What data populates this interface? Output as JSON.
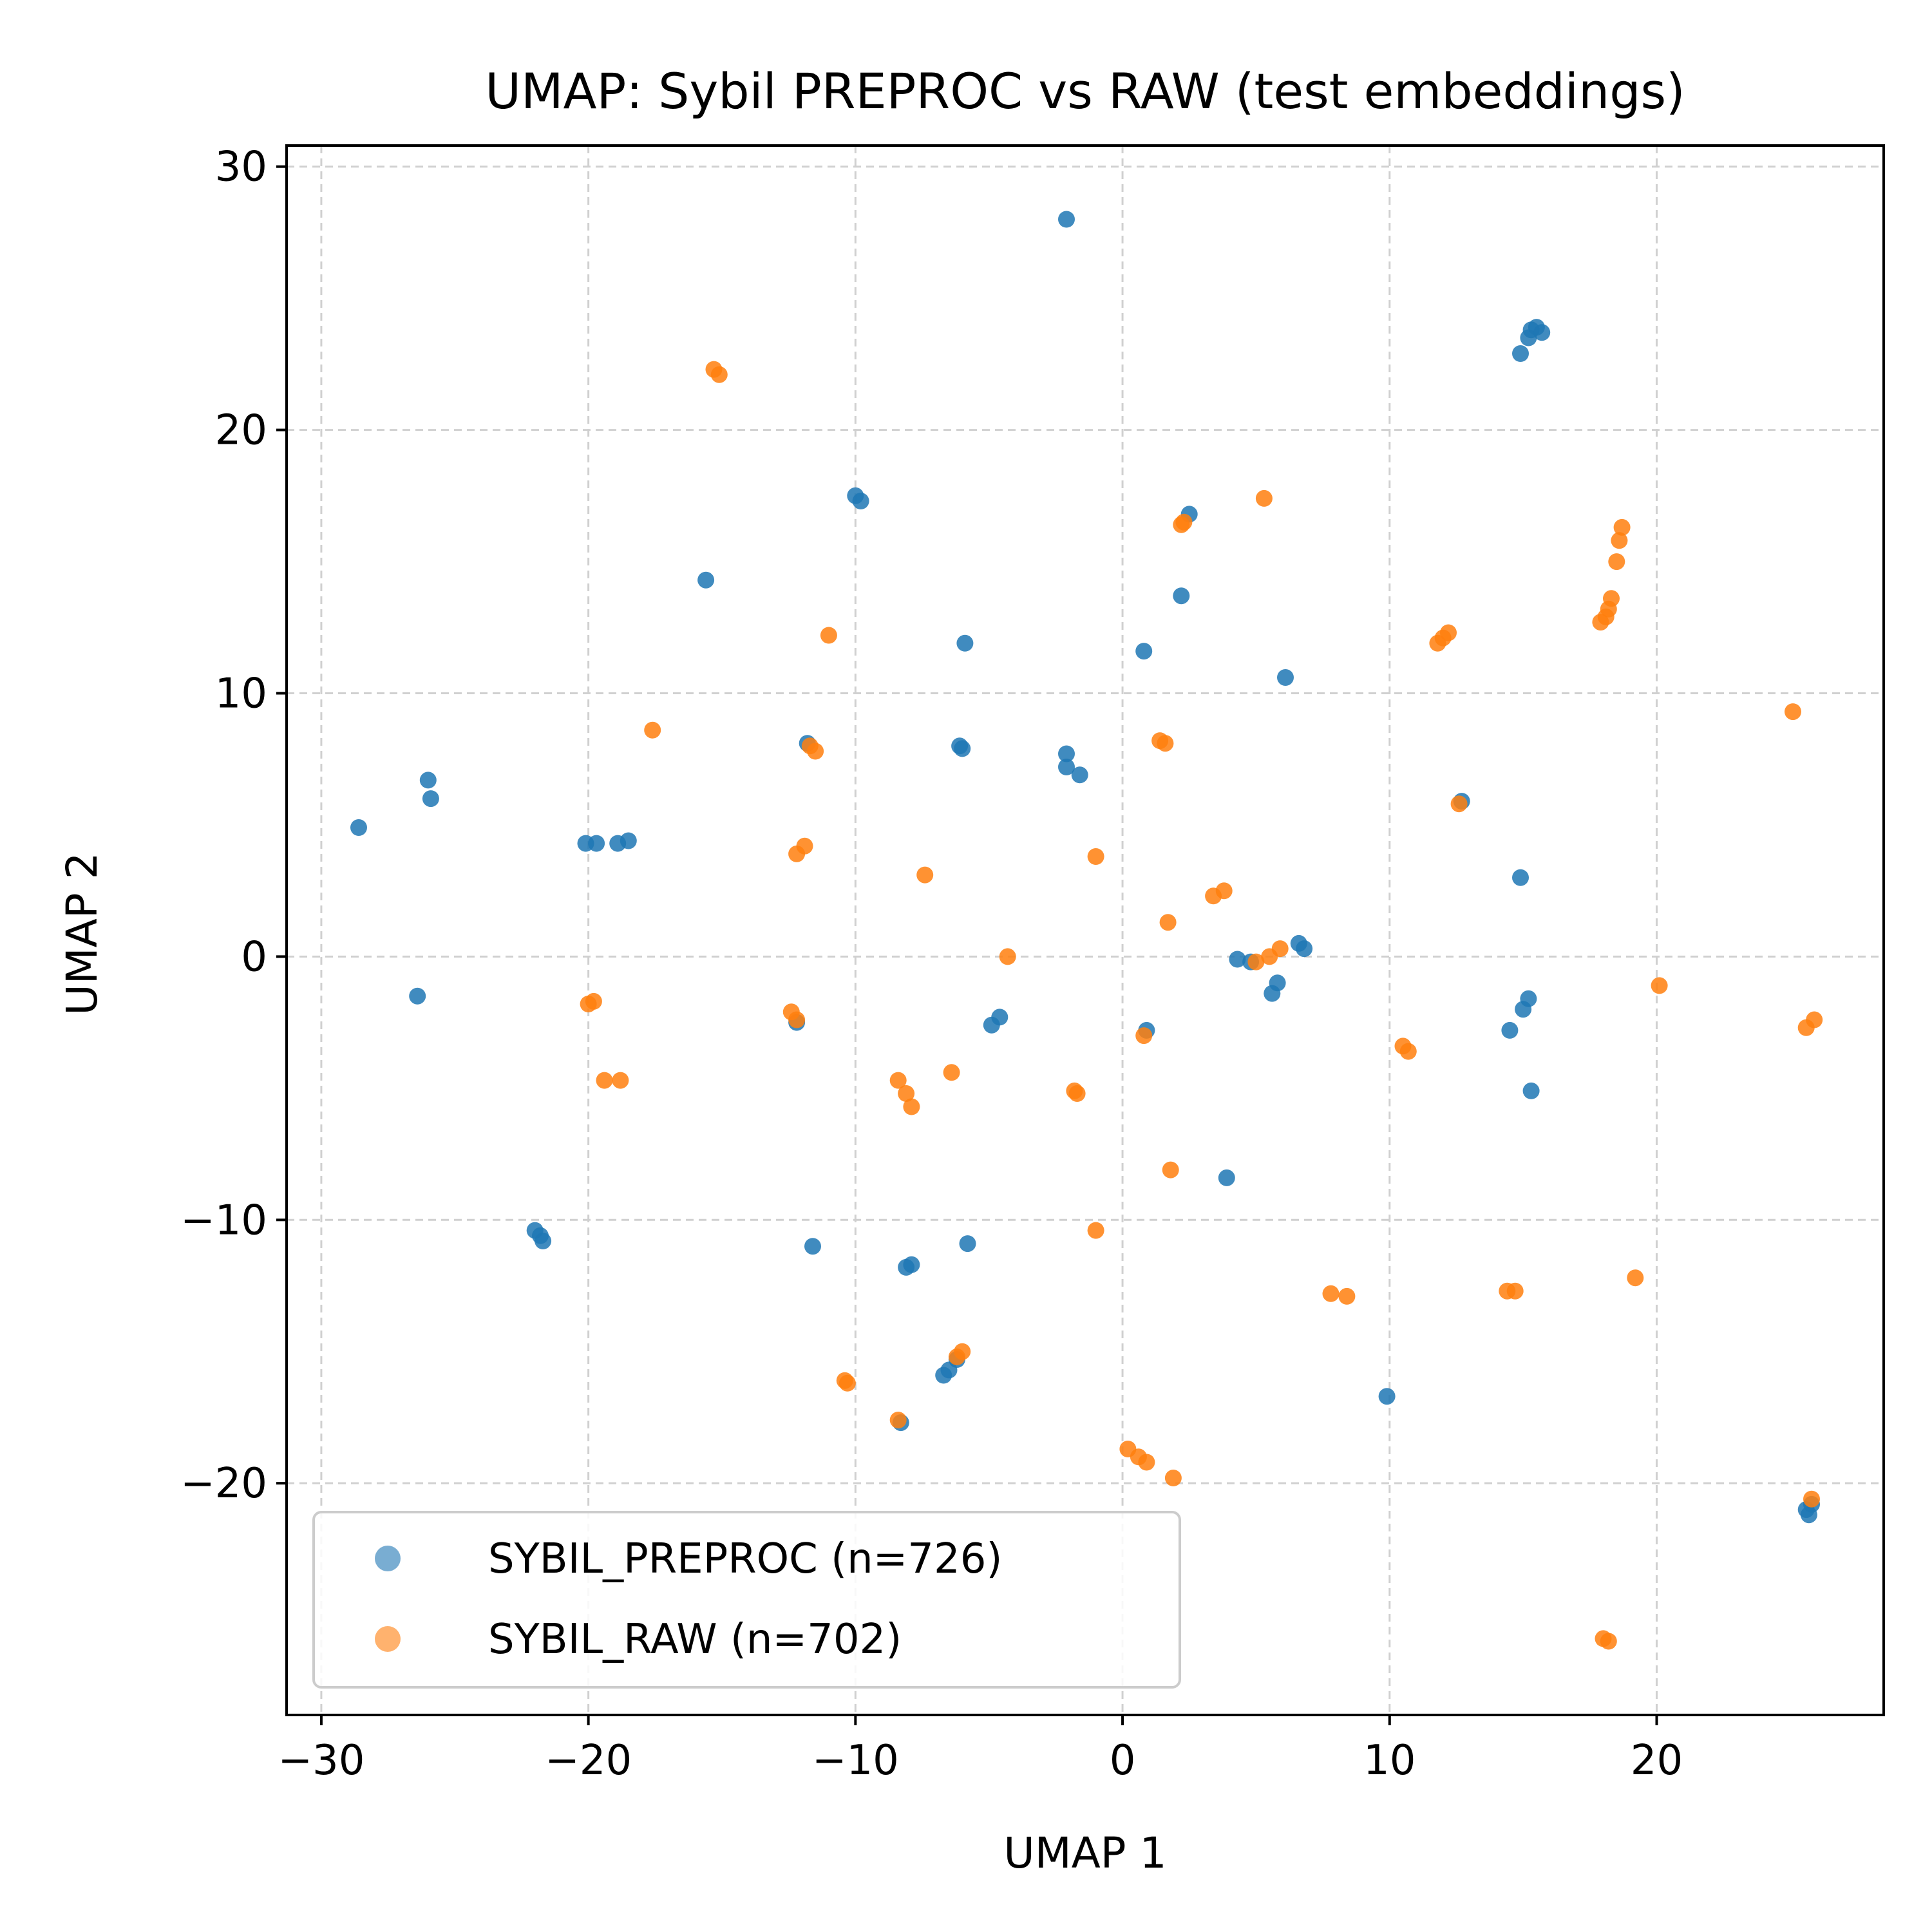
{
  "chart_data": {
    "type": "scatter",
    "title": "UMAP: Sybil PREPROC vs RAW (test embeddings)",
    "xlabel": "UMAP 1",
    "ylabel": "UMAP 2",
    "xlim": [
      -31.3,
      28.5
    ],
    "ylim": [
      -28.8,
      30.8
    ],
    "grid": true,
    "legend_position": "lower-left",
    "x_ticks": [
      -30,
      -20,
      -10,
      0,
      10,
      20
    ],
    "y_ticks": [
      -20,
      -10,
      0,
      10,
      20,
      30
    ],
    "x_tick_labels": [
      "−30",
      "−20",
      "−10",
      "0",
      "10",
      "20"
    ],
    "y_tick_labels": [
      "−20",
      "−10",
      "0",
      "10",
      "20",
      "30"
    ],
    "series": [
      {
        "name": "SYBIL_PREPROC (n=726)",
        "color": "#1f77b4",
        "points": [
          [
            -2.1,
            28.0
          ],
          [
            15.3,
            23.8
          ],
          [
            15.5,
            23.9
          ],
          [
            15.7,
            23.7
          ],
          [
            15.2,
            23.5
          ],
          [
            14.9,
            22.9
          ],
          [
            -10.0,
            17.5
          ],
          [
            -9.8,
            17.3
          ],
          [
            2.5,
            16.8
          ],
          [
            -15.6,
            14.3
          ],
          [
            2.2,
            13.7
          ],
          [
            -5.9,
            11.9
          ],
          [
            0.8,
            11.6
          ],
          [
            6.1,
            10.6
          ],
          [
            -26.0,
            6.7
          ],
          [
            -25.9,
            6.0
          ],
          [
            -28.6,
            4.9
          ],
          [
            -20.1,
            4.3
          ],
          [
            -19.7,
            4.3
          ],
          [
            -18.9,
            4.3
          ],
          [
            -18.5,
            4.4
          ],
          [
            -11.8,
            8.1
          ],
          [
            -6.1,
            8.0
          ],
          [
            -6.0,
            7.9
          ],
          [
            -2.1,
            7.7
          ],
          [
            -2.1,
            7.2
          ],
          [
            -1.6,
            6.9
          ],
          [
            12.7,
            5.9
          ],
          [
            14.9,
            3.0
          ],
          [
            4.3,
            -0.1
          ],
          [
            4.8,
            -0.2
          ],
          [
            6.6,
            0.5
          ],
          [
            6.8,
            0.3
          ],
          [
            5.8,
            -1.0
          ],
          [
            5.6,
            -1.4
          ],
          [
            -26.4,
            -1.5
          ],
          [
            -12.2,
            -2.5
          ],
          [
            -4.9,
            -2.6
          ],
          [
            -4.6,
            -2.3
          ],
          [
            0.9,
            -2.8
          ],
          [
            15.2,
            -1.6
          ],
          [
            15.0,
            -2.0
          ],
          [
            14.5,
            -2.8
          ],
          [
            15.3,
            -5.1
          ],
          [
            3.9,
            -8.4
          ],
          [
            -22.0,
            -10.4
          ],
          [
            -21.8,
            -10.6
          ],
          [
            -21.7,
            -10.8
          ],
          [
            -11.6,
            -11.0
          ],
          [
            -5.8,
            -10.9
          ],
          [
            -8.1,
            -11.8
          ],
          [
            -7.9,
            -11.7
          ],
          [
            -6.7,
            -15.9
          ],
          [
            -6.5,
            -15.7
          ],
          [
            -6.2,
            -15.3
          ],
          [
            -8.3,
            -17.7
          ],
          [
            9.9,
            -16.7
          ],
          [
            25.6,
            -21.0
          ],
          [
            25.7,
            -21.2
          ],
          [
            25.8,
            -20.8
          ]
        ]
      },
      {
        "name": "SYBIL_RAW (n=702)",
        "color": "#ff7f0e",
        "points": [
          [
            -15.3,
            22.3
          ],
          [
            -15.1,
            22.1
          ],
          [
            5.3,
            17.4
          ],
          [
            2.2,
            16.4
          ],
          [
            2.3,
            16.5
          ],
          [
            18.7,
            16.3
          ],
          [
            18.6,
            15.8
          ],
          [
            18.5,
            15.0
          ],
          [
            18.3,
            13.6
          ],
          [
            18.2,
            13.2
          ],
          [
            18.1,
            12.9
          ],
          [
            17.9,
            12.7
          ],
          [
            11.8,
            11.9
          ],
          [
            12.0,
            12.1
          ],
          [
            12.2,
            12.3
          ],
          [
            -11.0,
            12.2
          ],
          [
            -17.6,
            8.6
          ],
          [
            -11.7,
            8.0
          ],
          [
            -11.5,
            7.8
          ],
          [
            1.4,
            8.2
          ],
          [
            1.6,
            8.1
          ],
          [
            25.1,
            9.3
          ],
          [
            12.6,
            5.8
          ],
          [
            -12.2,
            3.9
          ],
          [
            -11.9,
            4.2
          ],
          [
            -1.0,
            3.8
          ],
          [
            -7.4,
            3.1
          ],
          [
            3.4,
            2.3
          ],
          [
            3.8,
            2.5
          ],
          [
            1.7,
            1.3
          ],
          [
            -4.3,
            0.0
          ],
          [
            5.0,
            -0.2
          ],
          [
            5.5,
            0.0
          ],
          [
            5.9,
            0.3
          ],
          [
            -20.0,
            -1.8
          ],
          [
            -19.8,
            -1.7
          ],
          [
            -12.4,
            -2.1
          ],
          [
            -12.2,
            -2.4
          ],
          [
            20.1,
            -1.1
          ],
          [
            25.6,
            -2.7
          ],
          [
            25.9,
            -2.4
          ],
          [
            0.8,
            -3.0
          ],
          [
            10.5,
            -3.4
          ],
          [
            10.7,
            -3.6
          ],
          [
            -19.4,
            -4.7
          ],
          [
            -18.8,
            -4.7
          ],
          [
            -8.4,
            -4.7
          ],
          [
            -8.1,
            -5.2
          ],
          [
            -7.9,
            -5.7
          ],
          [
            -6.4,
            -4.4
          ],
          [
            -1.8,
            -5.1
          ],
          [
            -1.7,
            -5.2
          ],
          [
            1.8,
            -8.1
          ],
          [
            -1.0,
            -10.4
          ],
          [
            7.8,
            -12.8
          ],
          [
            8.4,
            -12.9
          ],
          [
            14.4,
            -12.7
          ],
          [
            14.7,
            -12.7
          ],
          [
            19.2,
            -12.2
          ],
          [
            -6.0,
            -15.0
          ],
          [
            -6.2,
            -15.2
          ],
          [
            -10.4,
            -16.1
          ],
          [
            -10.3,
            -16.2
          ],
          [
            -8.4,
            -17.6
          ],
          [
            0.2,
            -18.7
          ],
          [
            0.6,
            -19.0
          ],
          [
            0.9,
            -19.2
          ],
          [
            1.9,
            -19.8
          ],
          [
            25.8,
            -20.6
          ],
          [
            18.0,
            -25.9
          ],
          [
            18.2,
            -26.0
          ]
        ]
      }
    ]
  }
}
